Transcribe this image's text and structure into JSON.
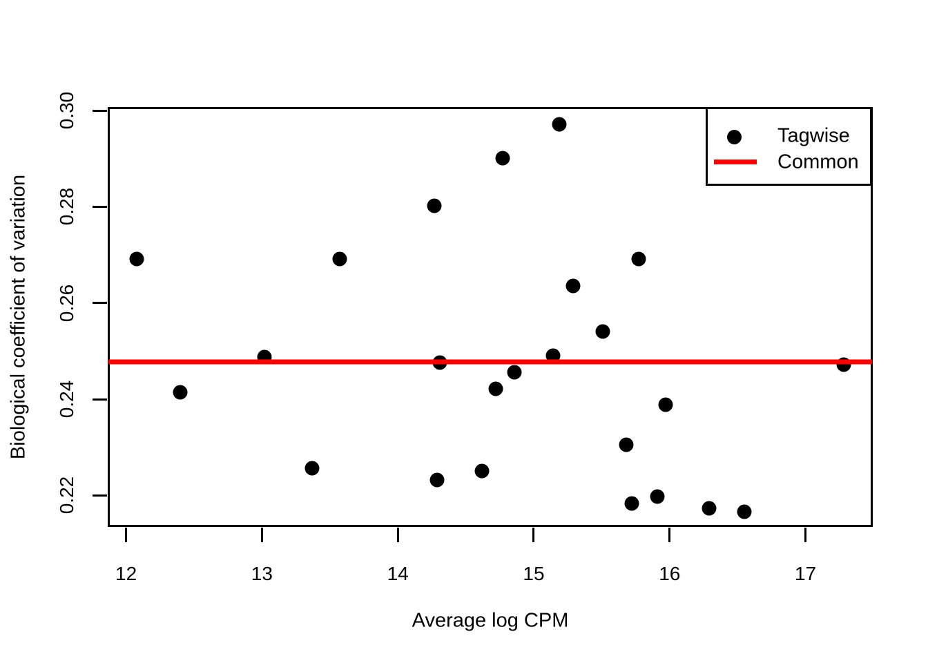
{
  "chart_data": {
    "type": "scatter",
    "title": "",
    "xlabel": "Average log CPM",
    "ylabel": "Biological coefficient of variation",
    "xlim": [
      11.87,
      17.49
    ],
    "ylim": [
      0.2136,
      0.3006
    ],
    "grid": false,
    "x_ticks": {
      "values": [
        12,
        13,
        14,
        15,
        16,
        17
      ],
      "labels": [
        "12",
        "13",
        "14",
        "15",
        "16",
        "17"
      ]
    },
    "y_ticks": {
      "values": [
        0.22,
        0.24,
        0.26,
        0.28,
        0.3
      ],
      "labels": [
        "0.22",
        "0.24",
        "0.26",
        "0.28",
        "0.30"
      ]
    },
    "series": [
      {
        "name": "Tagwise",
        "type": "points",
        "marker": "filled-circle",
        "color": "#000000",
        "points": [
          [
            12.08,
            0.2691
          ],
          [
            12.4,
            0.2415
          ],
          [
            13.02,
            0.2488
          ],
          [
            13.37,
            0.2256
          ],
          [
            13.57,
            0.2691
          ],
          [
            14.27,
            0.2802
          ],
          [
            14.29,
            0.2232
          ],
          [
            14.31,
            0.2476
          ],
          [
            14.62,
            0.2251
          ],
          [
            14.72,
            0.2422
          ],
          [
            14.77,
            0.2901
          ],
          [
            14.86,
            0.2456
          ],
          [
            15.14,
            0.249
          ],
          [
            15.19,
            0.2971
          ],
          [
            15.29,
            0.2636
          ],
          [
            15.51,
            0.2541
          ],
          [
            15.68,
            0.2306
          ],
          [
            15.72,
            0.2184
          ],
          [
            15.77,
            0.2691
          ],
          [
            15.91,
            0.2198
          ],
          [
            15.97,
            0.2388
          ],
          [
            16.29,
            0.2173
          ],
          [
            16.55,
            0.2166
          ],
          [
            17.28,
            0.2472
          ]
        ]
      },
      {
        "name": "Common",
        "type": "hline",
        "color": "#FF0000",
        "value": 0.2478
      }
    ],
    "legend": {
      "position": "topright",
      "entries": [
        {
          "label": "Tagwise",
          "marker": "point",
          "color": "#000000"
        },
        {
          "label": "Common",
          "marker": "line",
          "color": "#FF0000"
        }
      ]
    }
  },
  "colors": {
    "background": "#FFFFFF",
    "foreground": "#000000",
    "tagwise_point": "#000000",
    "common_line": "#FF0000"
  }
}
